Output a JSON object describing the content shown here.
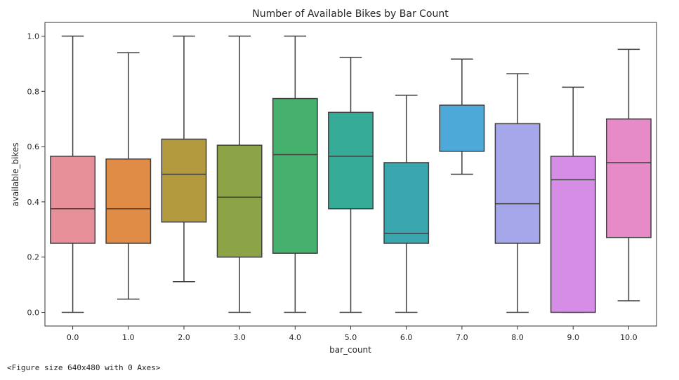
{
  "chart_data": {
    "type": "box",
    "title": "Number of Available Bikes by Bar Count",
    "xlabel": "bar_count",
    "ylabel": "available_bikes",
    "categories": [
      "0.0",
      "1.0",
      "2.0",
      "3.0",
      "4.0",
      "5.0",
      "6.0",
      "7.0",
      "8.0",
      "9.0",
      "10.0"
    ],
    "boxes": [
      {
        "category": "0.0",
        "whisker_low": 0.0,
        "q1": 0.25,
        "median": 0.375,
        "q3": 0.565,
        "whisker_high": 1.0,
        "color": "#e8909a"
      },
      {
        "category": "1.0",
        "whisker_low": 0.048,
        "q1": 0.25,
        "median": 0.375,
        "q3": 0.555,
        "whisker_high": 0.94,
        "color": "#e08c47"
      },
      {
        "category": "2.0",
        "whisker_low": 0.111,
        "q1": 0.327,
        "median": 0.5,
        "q3": 0.627,
        "whisker_high": 1.0,
        "color": "#b39a3f"
      },
      {
        "category": "3.0",
        "whisker_low": 0.0,
        "q1": 0.2,
        "median": 0.417,
        "q3": 0.605,
        "whisker_high": 1.0,
        "color": "#8ca445"
      },
      {
        "category": "4.0",
        "whisker_low": 0.0,
        "q1": 0.214,
        "median": 0.571,
        "q3": 0.774,
        "whisker_high": 1.0,
        "color": "#46b06e"
      },
      {
        "category": "5.0",
        "whisker_low": 0.0,
        "q1": 0.375,
        "median": 0.565,
        "q3": 0.724,
        "whisker_high": 0.923,
        "color": "#36ab97"
      },
      {
        "category": "6.0",
        "whisker_low": 0.0,
        "q1": 0.25,
        "median": 0.286,
        "q3": 0.542,
        "whisker_high": 0.786,
        "color": "#3aa7ae"
      },
      {
        "category": "7.0",
        "whisker_low": 0.5,
        "q1": 0.583,
        "median": 0.583,
        "q3": 0.75,
        "whisker_high": 0.917,
        "color": "#4da9d8"
      },
      {
        "category": "8.0",
        "whisker_low": 0.0,
        "q1": 0.25,
        "median": 0.393,
        "q3": 0.683,
        "whisker_high": 0.864,
        "color": "#a5a7ea"
      },
      {
        "category": "9.0",
        "whisker_low": 0.0,
        "q1": 0.0,
        "median": 0.48,
        "q3": 0.565,
        "whisker_high": 0.815,
        "color": "#d68de6"
      },
      {
        "category": "10.0",
        "whisker_low": 0.042,
        "q1": 0.271,
        "median": 0.542,
        "q3": 0.7,
        "whisker_high": 0.952,
        "color": "#e68ac8"
      }
    ],
    "yticks": [
      "0.0",
      "0.2",
      "0.4",
      "0.6",
      "0.8",
      "1.0"
    ],
    "ylim": [
      -0.05,
      1.05
    ],
    "grid": false,
    "line_color": "#3f3f3f"
  },
  "footer_text": "<Figure size 640x480 with 0 Axes>"
}
